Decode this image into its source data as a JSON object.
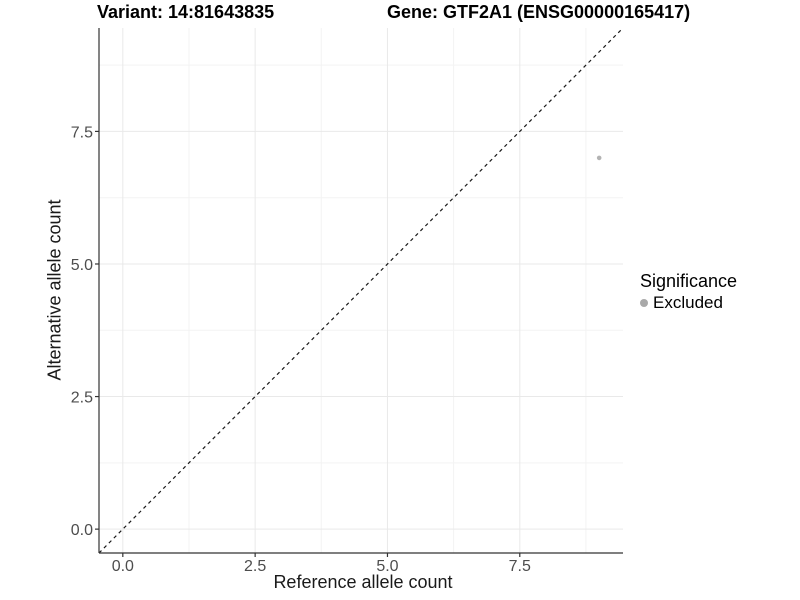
{
  "chart_data": {
    "type": "scatter",
    "title_left": "Variant: 14:81643835",
    "title_right": "Gene: GTF2A1 (ENSG00000165417)",
    "xlabel": "Reference allele count",
    "ylabel": "Alternative allele count",
    "xlim": [
      -0.45,
      9.45
    ],
    "ylim": [
      -0.45,
      9.45
    ],
    "x_ticks": [
      0,
      2.5,
      5,
      7.5
    ],
    "x_tick_labels": [
      "0.0",
      "2.5",
      "5.0",
      "7.5"
    ],
    "y_ticks": [
      0,
      2.5,
      5,
      7.5
    ],
    "y_tick_labels": [
      "0.0",
      "2.5",
      "5.0",
      "7.5"
    ],
    "x_minor_ticks": [
      1.25,
      3.75,
      6.25,
      8.75
    ],
    "y_minor_ticks": [
      1.25,
      3.75,
      6.25,
      8.75
    ],
    "grid": true,
    "reference_line": {
      "type": "identity",
      "style": "dashed",
      "color": "#1a1a1a"
    },
    "series": [
      {
        "name": "Excluded",
        "color": "#b3b3b3",
        "points": [
          {
            "x": 9,
            "y": 7
          }
        ]
      }
    ],
    "legend": {
      "title": "Significance",
      "position": "right",
      "items": [
        {
          "label": "Excluded",
          "color": "#a9a9a9"
        }
      ]
    }
  },
  "colors": {
    "background": "#ffffff",
    "grid_major": "#e9e9e9",
    "grid_minor": "#f3f3f3",
    "axis_line": "#333333",
    "tick_mark": "#333333",
    "tick_label": "#4d4d4d",
    "axis_title": "#1a1a1a",
    "title": "#000000"
  }
}
